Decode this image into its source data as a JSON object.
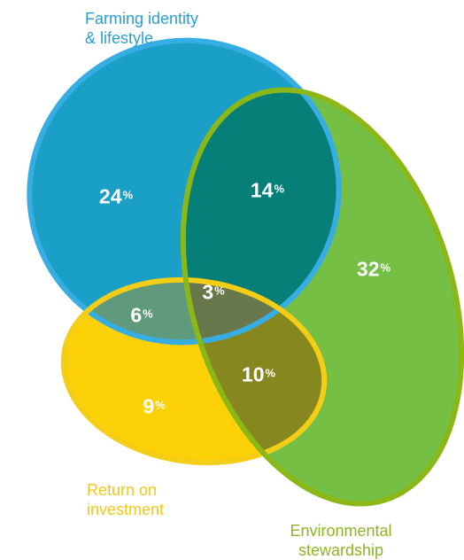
{
  "colors": {
    "farming": "#1a9fc7",
    "farming_stroke": "#37aee3",
    "environment": "#74bf44",
    "environment_stroke": "#8bb816",
    "roi": "#fcd108",
    "roi_stroke": "#f4cd17",
    "overlap_farming_env": "#067f79",
    "overlap_farming_roi": "#5f9a7c",
    "overlap_env_roi": "#86881f",
    "overlap_all": "#69774d",
    "label_text": "#ffffff"
  },
  "sets": {
    "farming": {
      "label_line1": "Farming identity",
      "label_line2": "& lifestyle",
      "label_color": "#2a9fd0"
    },
    "roi": {
      "label_line1": "Return on",
      "label_line2": "investment",
      "label_color": "#f2c81e"
    },
    "environment": {
      "label_line1": "Environmental",
      "label_line2": "stewardship",
      "label_color": "#8db525"
    }
  },
  "regions": {
    "farming_only": {
      "value": "24",
      "unit": "%"
    },
    "farming_env": {
      "value": "14",
      "unit": "%"
    },
    "env_only": {
      "value": "32",
      "unit": "%"
    },
    "farming_roi": {
      "value": "6",
      "unit": "%"
    },
    "all_three": {
      "value": "3",
      "unit": "%"
    },
    "env_roi": {
      "value": "10",
      "unit": "%"
    },
    "roi_only": {
      "value": "9",
      "unit": "%"
    }
  }
}
